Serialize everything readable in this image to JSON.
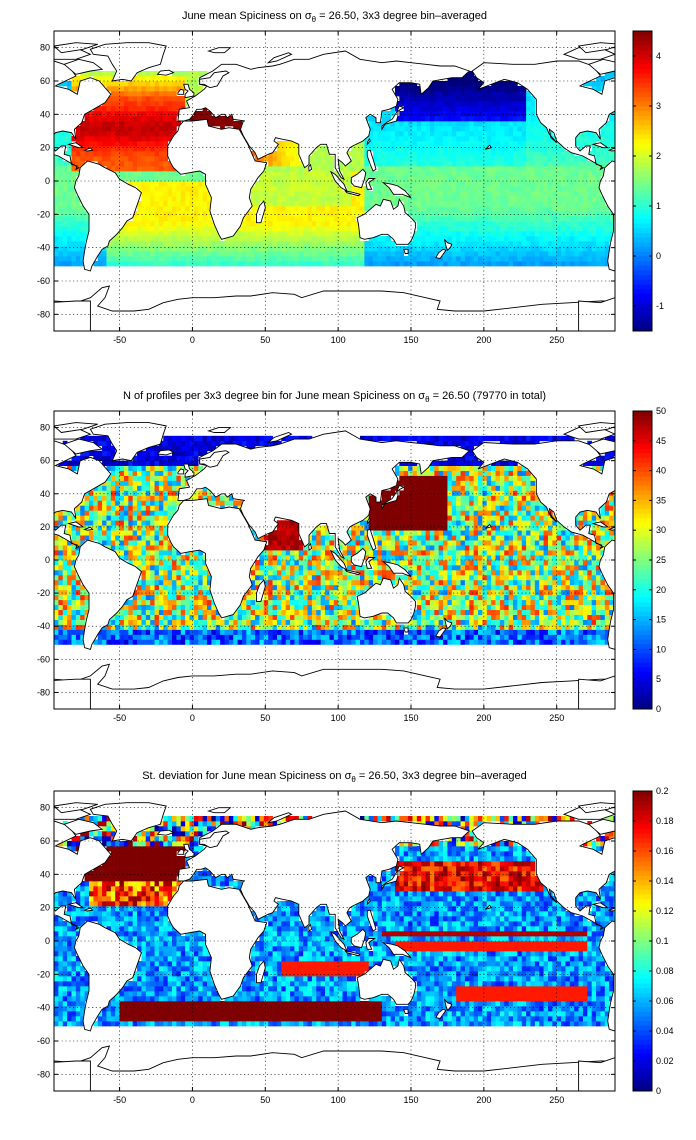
{
  "colors": {
    "jet_stops": [
      "#00007f",
      "#0000ff",
      "#007fff",
      "#00ffff",
      "#7fff7f",
      "#ffff00",
      "#ff7f00",
      "#ff0000",
      "#7f0000"
    ]
  },
  "chart_data": [
    {
      "type": "heatmap",
      "title": "June mean Spiciness on σθ = 26.50, 3x3 degree bin–averaged",
      "title_main": "June mean Spiciness on σ",
      "title_sub": "θ",
      "title_rest": " = 26.50, 3x3 degree bin–averaged",
      "xlim": [
        -95,
        290
      ],
      "ylim": [
        -90,
        90
      ],
      "xticks": [
        -50,
        0,
        50,
        100,
        150,
        200,
        250
      ],
      "yticks": [
        -80,
        -60,
        -40,
        -20,
        0,
        20,
        40,
        60,
        80
      ],
      "grid": true,
      "bin_size_deg": 3,
      "color_range": [
        -1.5,
        4.5
      ],
      "colorbar_ticks": [
        -1,
        0,
        1,
        2,
        3,
        4
      ],
      "colorbar_labels": [
        "-1",
        "0",
        "1",
        "2",
        "3",
        "4"
      ],
      "field": "spiciness"
    },
    {
      "type": "heatmap",
      "title": "N of profiles per 3x3 degree bin for June mean Spiciness on σθ = 26.50 (79770 in total)",
      "title_main": "N of profiles per 3x3 degree bin for June mean Spiciness on σ",
      "title_sub": "θ",
      "title_rest": " = 26.50 (79770 in total)",
      "xlim": [
        -95,
        290
      ],
      "ylim": [
        -90,
        90
      ],
      "xticks": [
        -50,
        0,
        50,
        100,
        150,
        200,
        250
      ],
      "yticks": [
        -80,
        -60,
        -40,
        -20,
        0,
        20,
        40,
        60,
        80
      ],
      "grid": true,
      "bin_size_deg": 3,
      "total_profiles": 79770,
      "color_range": [
        0,
        50
      ],
      "colorbar_ticks": [
        0,
        5,
        10,
        15,
        20,
        25,
        30,
        35,
        40,
        45,
        50
      ],
      "colorbar_labels": [
        "0",
        "5",
        "10",
        "15",
        "20",
        "25",
        "30",
        "35",
        "40",
        "45",
        "50"
      ],
      "field": "count"
    },
    {
      "type": "heatmap",
      "title": "St. deviation for June mean Spiciness on σθ = 26.50, 3x3 degree bin–averaged",
      "title_main": "St. deviation for June mean Spiciness on σ",
      "title_sub": "θ",
      "title_rest": " = 26.50, 3x3 degree bin–averaged",
      "xlim": [
        -95,
        290
      ],
      "ylim": [
        -90,
        90
      ],
      "xticks": [
        -50,
        0,
        50,
        100,
        150,
        200,
        250
      ],
      "yticks": [
        -80,
        -60,
        -40,
        -20,
        0,
        20,
        40,
        60,
        80
      ],
      "grid": true,
      "bin_size_deg": 3,
      "color_range": [
        0,
        0.2
      ],
      "colorbar_ticks": [
        0,
        0.02,
        0.04,
        0.06,
        0.08,
        0.1,
        0.12,
        0.14,
        0.16,
        0.18,
        0.2
      ],
      "colorbar_labels": [
        "0",
        "0.02",
        "0.04",
        "0.06",
        "0.08",
        "0.1",
        "0.12",
        "0.14",
        "0.16",
        "0.18",
        "0.2"
      ],
      "field": "stdev"
    }
  ]
}
